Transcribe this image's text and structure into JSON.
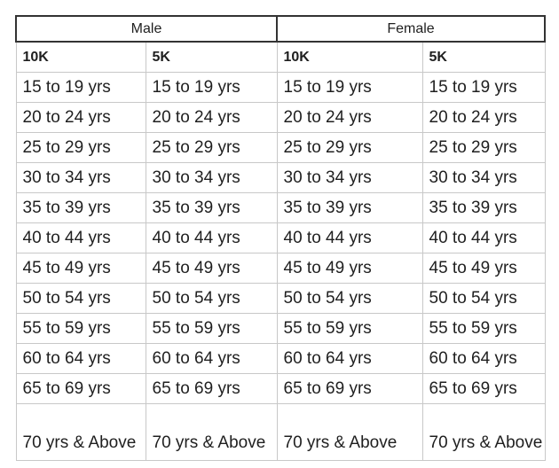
{
  "table": {
    "group_headers": [
      {
        "label": "Male",
        "colspan": 2
      },
      {
        "label": "Female",
        "colspan": 2
      }
    ],
    "column_headers": [
      "10K",
      "5K",
      "10K",
      "5K"
    ],
    "rows": [
      [
        "15 to 19 yrs",
        "15 to 19 yrs",
        "15 to 19 yrs",
        "15 to 19 yrs"
      ],
      [
        "20 to 24 yrs",
        "20 to 24 yrs",
        "20 to 24 yrs",
        "20 to 24 yrs"
      ],
      [
        "25 to 29 yrs",
        "25 to 29 yrs",
        "25 to 29 yrs",
        "25 to 29 yrs"
      ],
      [
        "30 to 34 yrs",
        "30 to 34 yrs",
        "30 to 34 yrs",
        "30 to 34 yrs"
      ],
      [
        "35 to 39 yrs",
        "35 to 39 yrs",
        "35 to 39 yrs",
        "35 to 39 yrs"
      ],
      [
        "40 to 44 yrs",
        "40 to 44 yrs",
        "40 to 44 yrs",
        "40 to 44 yrs"
      ],
      [
        "45 to 49 yrs",
        "45 to 49 yrs",
        "45 to 49 yrs",
        "45 to 49 yrs"
      ],
      [
        "50 to 54 yrs",
        "50 to 54 yrs",
        "50 to 54 yrs",
        "50 to 54 yrs"
      ],
      [
        "55 to 59 yrs",
        "55 to 59 yrs",
        "55 to 59 yrs",
        "55 to 59 yrs"
      ],
      [
        "60 to 64 yrs",
        "60 to 64 yrs",
        "60 to 64 yrs",
        "60 to 64 yrs"
      ],
      [
        "65 to 69 yrs",
        "65 to 69 yrs",
        "65 to 69 yrs",
        "65 to 69 yrs"
      ],
      [
        "70 yrs & Above",
        "70 yrs & Above",
        "70 yrs & Above",
        "70 yrs & Above"
      ]
    ],
    "colors": {
      "header_border": "#333333",
      "grid_border": "#c8c8c8",
      "text": "#1f1f1f",
      "background": "#ffffff"
    }
  }
}
